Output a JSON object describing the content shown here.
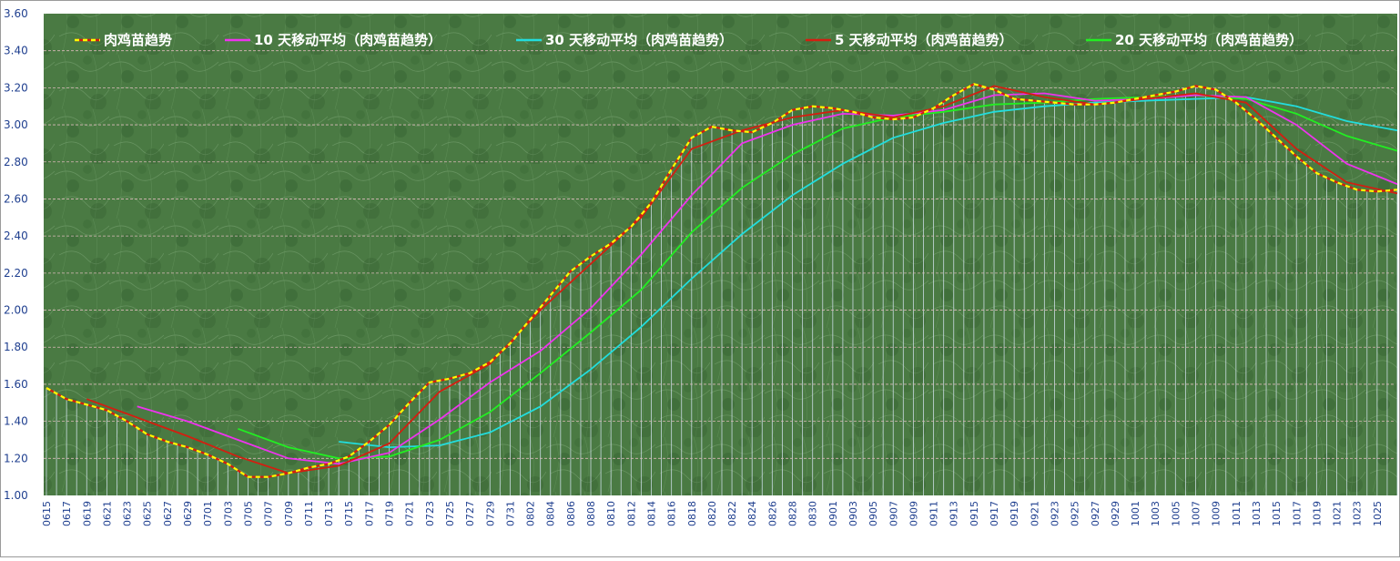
{
  "chart_data": {
    "type": "line",
    "title": "",
    "xlabel": "",
    "ylabel": "",
    "ylim": [
      1.0,
      3.6
    ],
    "yticks": [
      "1.00",
      "1.20",
      "1.40",
      "1.60",
      "1.80",
      "2.00",
      "2.20",
      "2.40",
      "2.60",
      "2.80",
      "3.00",
      "3.20",
      "3.40",
      "3.60"
    ],
    "grid": true,
    "legend_position": "top",
    "x_start": "2020-06-15",
    "x_end": "2020-10-27",
    "x_tick_labels": [
      "0615",
      "0617",
      "0619",
      "0621",
      "0623",
      "0625",
      "0627",
      "0629",
      "0701",
      "0703",
      "0705",
      "0707",
      "0709",
      "0711",
      "0713",
      "0715",
      "0717",
      "0719",
      "0721",
      "0723",
      "0725",
      "0727",
      "0729",
      "0731",
      "0802",
      "0804",
      "0806",
      "0808",
      "0810",
      "0812",
      "0814",
      "0816",
      "0818",
      "0820",
      "0822",
      "0824",
      "0826",
      "0828",
      "0830",
      "0901",
      "0903",
      "0905",
      "0907",
      "0909",
      "0911",
      "0913",
      "0915",
      "0917",
      "0919",
      "0921",
      "0923",
      "0925",
      "0927",
      "0929",
      "1001",
      "1003",
      "1005",
      "1007",
      "1009",
      "1011",
      "1013",
      "1015",
      "1017",
      "1019",
      "1021",
      "1023",
      "1025"
    ],
    "colors": {
      "plot_background": "#4a7a43",
      "background_dark": "#2f5a2c",
      "grid": "#d9b9b9",
      "drop_lines": "#cfdfea",
      "axis_text": "#1f3f8f",
      "legend_text": "#ffffff"
    },
    "series": [
      {
        "name": "肉鸡苗趋势",
        "color": "#ffff00",
        "dashed": true,
        "x": [
          "2020-06-15",
          "2020-06-17",
          "2020-06-19",
          "2020-06-21",
          "2020-06-23",
          "2020-06-25",
          "2020-06-27",
          "2020-06-29",
          "2020-07-01",
          "2020-07-03",
          "2020-07-05",
          "2020-07-07",
          "2020-07-09",
          "2020-07-11",
          "2020-07-13",
          "2020-07-15",
          "2020-07-17",
          "2020-07-19",
          "2020-07-21",
          "2020-07-23",
          "2020-07-25",
          "2020-07-27",
          "2020-07-29",
          "2020-07-31",
          "2020-08-02",
          "2020-08-04",
          "2020-08-06",
          "2020-08-08",
          "2020-08-10",
          "2020-08-12",
          "2020-08-14",
          "2020-08-16",
          "2020-08-18",
          "2020-08-20",
          "2020-08-22",
          "2020-08-24",
          "2020-08-26",
          "2020-08-28",
          "2020-08-30",
          "2020-09-01",
          "2020-09-03",
          "2020-09-05",
          "2020-09-07",
          "2020-09-09",
          "2020-09-11",
          "2020-09-13",
          "2020-09-15",
          "2020-09-17",
          "2020-09-19",
          "2020-09-21",
          "2020-09-23",
          "2020-09-25",
          "2020-09-27",
          "2020-09-29",
          "2020-10-01",
          "2020-10-03",
          "2020-10-05",
          "2020-10-07",
          "2020-10-09",
          "2020-10-11",
          "2020-10-13",
          "2020-10-15",
          "2020-10-17",
          "2020-10-19",
          "2020-10-21",
          "2020-10-23",
          "2020-10-25",
          "2020-10-27"
        ],
        "y": [
          1.58,
          1.52,
          1.49,
          1.46,
          1.4,
          1.33,
          1.29,
          1.26,
          1.22,
          1.17,
          1.1,
          1.1,
          1.12,
          1.15,
          1.17,
          1.21,
          1.29,
          1.38,
          1.5,
          1.61,
          1.63,
          1.66,
          1.72,
          1.82,
          1.95,
          2.08,
          2.21,
          2.29,
          2.36,
          2.45,
          2.58,
          2.76,
          2.93,
          2.99,
          2.97,
          2.96,
          3.01,
          3.08,
          3.1,
          3.09,
          3.07,
          3.04,
          3.03,
          3.04,
          3.09,
          3.16,
          3.22,
          3.19,
          3.14,
          3.13,
          3.12,
          3.11,
          3.11,
          3.12,
          3.14,
          3.16,
          3.18,
          3.21,
          3.19,
          3.12,
          3.03,
          2.93,
          2.83,
          2.74,
          2.69,
          2.65,
          2.64,
          2.65
        ]
      },
      {
        "name": "10 天移动平均（肉鸡苗趋势）",
        "color": "#ee33ee",
        "dashed": false,
        "x": [
          "2020-06-24",
          "2020-06-29",
          "2020-07-04",
          "2020-07-09",
          "2020-07-14",
          "2020-07-19",
          "2020-07-24",
          "2020-07-29",
          "2020-08-03",
          "2020-08-08",
          "2020-08-13",
          "2020-08-18",
          "2020-08-23",
          "2020-08-28",
          "2020-09-02",
          "2020-09-07",
          "2020-09-12",
          "2020-09-17",
          "2020-09-22",
          "2020-09-27",
          "2020-10-02",
          "2020-10-07",
          "2020-10-12",
          "2020-10-17",
          "2020-10-22",
          "2020-10-27"
        ],
        "y": [
          1.48,
          1.4,
          1.3,
          1.2,
          1.17,
          1.23,
          1.41,
          1.61,
          1.78,
          2.01,
          2.3,
          2.62,
          2.9,
          3.0,
          3.06,
          3.05,
          3.08,
          3.16,
          3.17,
          3.13,
          3.14,
          3.16,
          3.15,
          3.0,
          2.79,
          2.68
        ]
      },
      {
        "name": "30 天移动平均（肉鸡苗趋势）",
        "color": "#22dddd",
        "dashed": false,
        "x": [
          "2020-07-14",
          "2020-07-19",
          "2020-07-24",
          "2020-07-29",
          "2020-08-03",
          "2020-08-08",
          "2020-08-13",
          "2020-08-18",
          "2020-08-23",
          "2020-08-28",
          "2020-09-02",
          "2020-09-07",
          "2020-09-12",
          "2020-09-17",
          "2020-09-22",
          "2020-09-27",
          "2020-10-02",
          "2020-10-07",
          "2020-10-12",
          "2020-10-17",
          "2020-10-22",
          "2020-10-27"
        ],
        "y": [
          1.29,
          1.26,
          1.27,
          1.34,
          1.48,
          1.68,
          1.91,
          2.17,
          2.41,
          2.62,
          2.79,
          2.93,
          3.01,
          3.07,
          3.1,
          3.12,
          3.13,
          3.14,
          3.15,
          3.1,
          3.02,
          2.97
        ]
      },
      {
        "name": "5 天移动平均（肉鸡苗趋势）",
        "color": "#d41e10",
        "dashed": false,
        "x": [
          "2020-06-19",
          "2020-06-24",
          "2020-06-29",
          "2020-07-04",
          "2020-07-09",
          "2020-07-14",
          "2020-07-19",
          "2020-07-24",
          "2020-07-29",
          "2020-08-03",
          "2020-08-08",
          "2020-08-13",
          "2020-08-18",
          "2020-08-23",
          "2020-08-28",
          "2020-09-02",
          "2020-09-07",
          "2020-09-12",
          "2020-09-17",
          "2020-09-22",
          "2020-09-27",
          "2020-10-02",
          "2020-10-07",
          "2020-10-12",
          "2020-10-17",
          "2020-10-22",
          "2020-10-27"
        ],
        "y": [
          1.52,
          1.42,
          1.32,
          1.21,
          1.12,
          1.16,
          1.28,
          1.56,
          1.71,
          2.0,
          2.25,
          2.5,
          2.87,
          2.97,
          3.04,
          3.08,
          3.04,
          3.1,
          3.21,
          3.15,
          3.11,
          3.14,
          3.17,
          3.12,
          2.87,
          2.69,
          2.63
        ]
      },
      {
        "name": "20 天移动平均（肉鸡苗趋势）",
        "color": "#22ee22",
        "dashed": false,
        "x": [
          "2020-07-04",
          "2020-07-09",
          "2020-07-14",
          "2020-07-19",
          "2020-07-24",
          "2020-07-29",
          "2020-08-03",
          "2020-08-08",
          "2020-08-13",
          "2020-08-18",
          "2020-08-23",
          "2020-08-28",
          "2020-09-02",
          "2020-09-07",
          "2020-09-12",
          "2020-09-17",
          "2020-09-22",
          "2020-09-27",
          "2020-10-02",
          "2020-10-07",
          "2020-10-12",
          "2020-10-17",
          "2020-10-22",
          "2020-10-27"
        ],
        "y": [
          1.36,
          1.26,
          1.2,
          1.21,
          1.3,
          1.45,
          1.66,
          1.88,
          2.11,
          2.42,
          2.66,
          2.84,
          2.98,
          3.04,
          3.07,
          3.11,
          3.12,
          3.14,
          3.15,
          3.16,
          3.14,
          3.06,
          2.94,
          2.86
        ]
      }
    ]
  }
}
